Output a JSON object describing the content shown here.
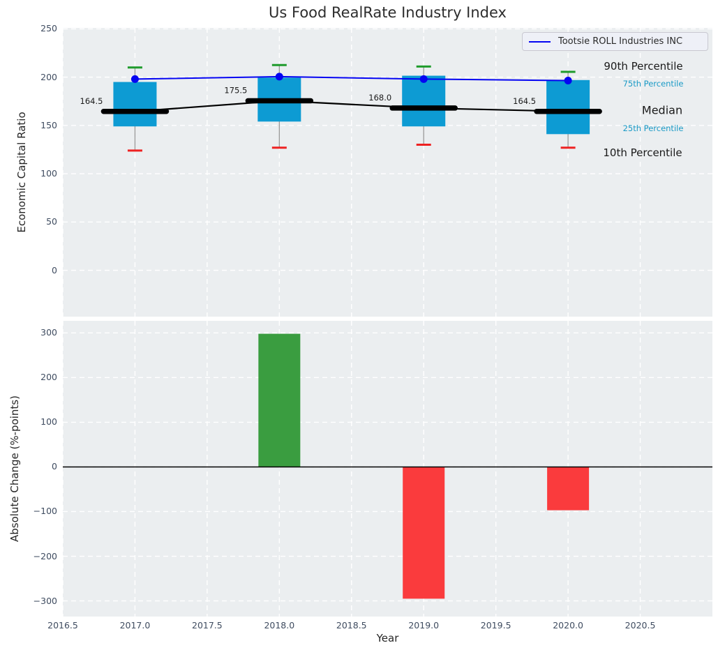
{
  "title": "Us Food RealRate Industry Index",
  "legend": {
    "label": "Tootsie ROLL Industries INC",
    "line_color": "#0404f2"
  },
  "colors": {
    "axes_bg": "#ebeef0",
    "grid": "#ffffff",
    "box_fill": "#0d9bd3",
    "median_line": "#000000",
    "company_line": "#0404f2",
    "p90_cap": "#1f9b2c",
    "p10_cap": "#ee2222",
    "whisker": "#999999",
    "positive_bar": "#3a9d40",
    "negative_bar": "#fa3b3d",
    "tick_label": "#3f4c60",
    "annotation_cyan": "#1a9ac6",
    "annotation_dark": "#1a1a1a",
    "zero_line": "#000000"
  },
  "chart_data": [
    {
      "type": "boxplot+line",
      "title": "Us Food RealRate Industry Index",
      "ylabel": "Economic Capital Ratio",
      "years": [
        2017,
        2018,
        2019,
        2020
      ],
      "p90": [
        210,
        212.5,
        211,
        205.5
      ],
      "p75": [
        195,
        199.5,
        201.5,
        197
      ],
      "median": [
        164.5,
        175.5,
        168.0,
        164.5
      ],
      "median_labels": [
        "164.5",
        "175.5",
        "168.0",
        "164.5"
      ],
      "p25": [
        149,
        154,
        149,
        141
      ],
      "p10": [
        124,
        127,
        130,
        127
      ],
      "series": [
        {
          "name": "Tootsie ROLL Industries INC",
          "values": [
            198,
            200.5,
            198,
            196.5
          ]
        }
      ],
      "annotations": [
        "90th Percentile",
        "75th Percentile",
        "Median",
        "25th Percentile",
        "10th Percentile"
      ],
      "yticks": [
        250,
        200,
        150,
        100,
        50,
        0
      ],
      "ytick_labels": [
        "250",
        "200",
        "150",
        "100",
        "50",
        "0"
      ],
      "ylim": [
        -48,
        251
      ],
      "xlim": [
        2016.5,
        2021.0
      ],
      "grid": true,
      "legend_position": "upper right"
    },
    {
      "type": "bar",
      "ylabel": "Absolute Change (%-points)",
      "xlabel": "Year",
      "x": [
        2018,
        2019,
        2020
      ],
      "values": [
        298,
        -295,
        -97
      ],
      "bar_colors": [
        "#3a9d40",
        "#fa3b3d",
        "#fa3b3d"
      ],
      "yticks": [
        300,
        200,
        100,
        0,
        -100,
        -200,
        -300
      ],
      "ytick_labels": [
        "300",
        "200",
        "100",
        "0",
        "−100",
        "−200",
        "−300"
      ],
      "ylim": [
        -335,
        327
      ],
      "xlim": [
        2016.5,
        2021.0
      ],
      "xticks": [
        2016.5,
        2017.0,
        2017.5,
        2018.0,
        2018.5,
        2019.0,
        2019.5,
        2020.0,
        2020.5
      ],
      "xtick_labels": [
        "2016.5",
        "2017.0",
        "2017.5",
        "2018.0",
        "2018.5",
        "2019.0",
        "2019.5",
        "2020.0",
        "2020.5"
      ],
      "grid": true
    }
  ]
}
